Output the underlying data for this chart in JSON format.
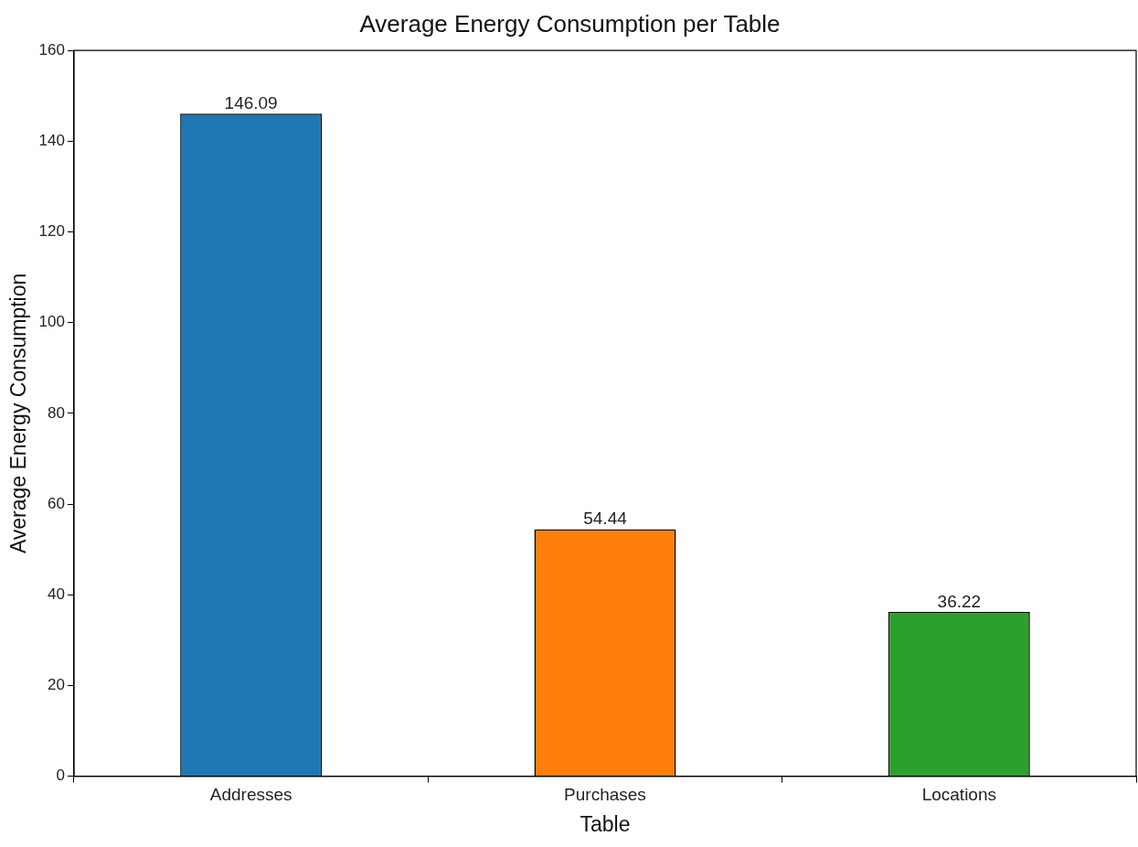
{
  "chart_data": {
    "type": "bar",
    "title": "Average Energy Consumption per Table",
    "xlabel": "Table",
    "ylabel": "Average Energy Consumption",
    "categories": [
      "Addresses",
      "Purchases",
      "Locations"
    ],
    "values": [
      146.09,
      54.44,
      36.22
    ],
    "colors": [
      "#1f77b4",
      "#ff7f0e",
      "#2ca02c"
    ],
    "ylim": [
      0,
      160
    ],
    "yticks": [
      0,
      20,
      40,
      60,
      80,
      100,
      120,
      140,
      160
    ],
    "grid": false,
    "legend": false,
    "data_labels": true
  }
}
